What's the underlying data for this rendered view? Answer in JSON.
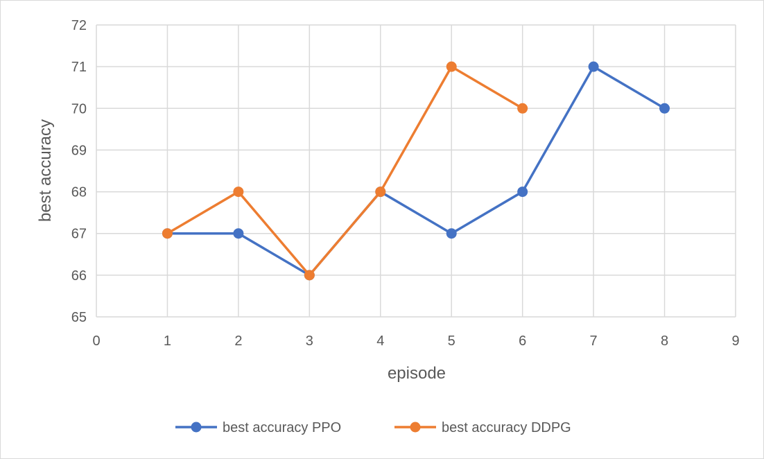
{
  "chart_data": {
    "type": "line",
    "title": "",
    "xlabel": "episode",
    "ylabel": "best accuracy",
    "xlim": [
      0,
      9
    ],
    "ylim": [
      65,
      72
    ],
    "x_ticks": [
      0,
      1,
      2,
      3,
      4,
      5,
      6,
      7,
      8,
      9
    ],
    "y_ticks": [
      65,
      66,
      67,
      68,
      69,
      70,
      71,
      72
    ],
    "grid": true,
    "legend_position": "bottom",
    "series": [
      {
        "name": "best accuracy PPO",
        "color": "#4472C4",
        "marker": "circle",
        "x": [
          1,
          2,
          3,
          4,
          5,
          6,
          7,
          8
        ],
        "y": [
          67,
          67,
          66,
          68,
          67,
          68,
          71,
          70
        ]
      },
      {
        "name": "best accuracy DDPG",
        "color": "#ED7D31",
        "marker": "circle",
        "x": [
          1,
          2,
          3,
          4,
          5,
          6
        ],
        "y": [
          67,
          68,
          66,
          68,
          71,
          70
        ]
      }
    ]
  }
}
